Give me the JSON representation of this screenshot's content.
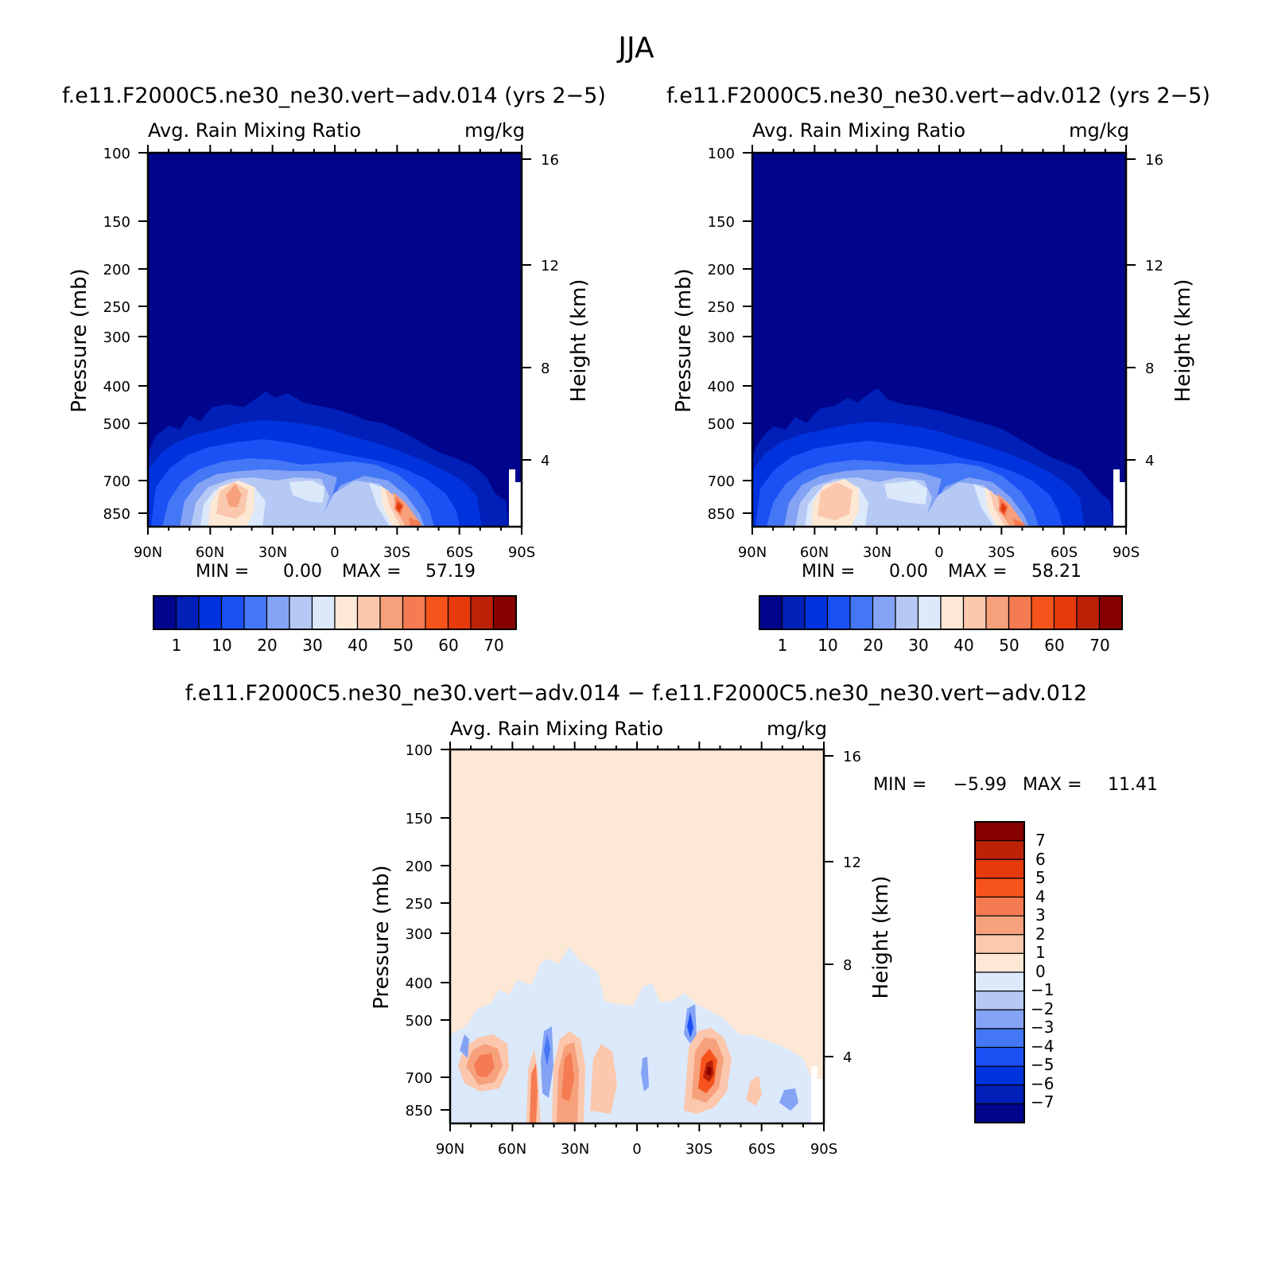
{
  "figure": {
    "title": "JJA"
  },
  "colors": {
    "abs_scale": [
      "#00058c",
      "#0020b8",
      "#0033dd",
      "#1b50f5",
      "#4477f5",
      "#84a3f5",
      "#b6c9f5",
      "#dbe9fb",
      "#fde8d6",
      "#fbc7ad",
      "#f6a07c",
      "#f57b52",
      "#f6541c",
      "#e43a0c",
      "#bd2208",
      "#870000"
    ],
    "diff_scale": [
      "#00058c",
      "#0020b8",
      "#0033dd",
      "#1b50f5",
      "#4477f5",
      "#84a3f5",
      "#b6c9f5",
      "#dbe9fb",
      "#fde8d6",
      "#fbc7ad",
      "#f6a07c",
      "#f57b52",
      "#f6541c",
      "#e43a0c",
      "#bd2208",
      "#870000"
    ]
  },
  "chart_data": [
    {
      "type": "heatmap",
      "title": "f.e11.F2000C5.ne30_ne30.vert−adv.014 (yrs 2−5)",
      "subtitle_left": "Avg. Rain Mixing Ratio",
      "subtitle_right": "mg/kg",
      "ylabel": "Pressure (mb)",
      "ylabel_right": "Height (km)",
      "x_ticks": [
        "90N",
        "60N",
        "30N",
        "0",
        "30S",
        "60S",
        "90S"
      ],
      "y_ticks": [
        "100",
        "150",
        "200",
        "250",
        "300",
        "400",
        "500",
        "700",
        "850"
      ],
      "y_ticks_right": [
        "16",
        "12",
        "8",
        "4"
      ],
      "min_label": "MIN =",
      "min_value": "0.00",
      "max_label": "MAX =",
      "max_value": "57.19",
      "colorbar_labels": [
        "1",
        "10",
        "20",
        "30",
        "40",
        "50",
        "60",
        "70"
      ]
    },
    {
      "type": "heatmap",
      "title": "f.e11.F2000C5.ne30_ne30.vert−adv.012 (yrs 2−5)",
      "subtitle_left": "Avg. Rain Mixing Ratio",
      "subtitle_right": "mg/kg",
      "ylabel": "Pressure (mb)",
      "ylabel_right": "Height (km)",
      "x_ticks": [
        "90N",
        "60N",
        "30N",
        "0",
        "30S",
        "60S",
        "90S"
      ],
      "y_ticks": [
        "100",
        "150",
        "200",
        "250",
        "300",
        "400",
        "500",
        "700",
        "850"
      ],
      "y_ticks_right": [
        "16",
        "12",
        "8",
        "4"
      ],
      "min_label": "MIN =",
      "min_value": "0.00",
      "max_label": "MAX =",
      "max_value": "58.21",
      "colorbar_labels": [
        "1",
        "10",
        "20",
        "30",
        "40",
        "50",
        "60",
        "70"
      ]
    },
    {
      "type": "heatmap",
      "title": "f.e11.F2000C5.ne30_ne30.vert−adv.014 − f.e11.F2000C5.ne30_ne30.vert−adv.012",
      "subtitle_left": "Avg. Rain Mixing Ratio",
      "subtitle_right": "mg/kg",
      "ylabel": "Pressure (mb)",
      "ylabel_right": "Height (km)",
      "x_ticks": [
        "90N",
        "60N",
        "30N",
        "0",
        "30S",
        "60S",
        "90S"
      ],
      "y_ticks": [
        "100",
        "150",
        "200",
        "250",
        "300",
        "400",
        "500",
        "700",
        "850"
      ],
      "y_ticks_right": [
        "16",
        "12",
        "8",
        "4"
      ],
      "min_label": "MIN =",
      "min_value": "−5.99",
      "max_label": "MAX =",
      "max_value": "11.41",
      "colorbar_labels": [
        "7",
        "6",
        "5",
        "4",
        "3",
        "2",
        "1",
        "0",
        "−1",
        "−2",
        "−3",
        "−4",
        "−5",
        "−6",
        "−7"
      ]
    }
  ]
}
